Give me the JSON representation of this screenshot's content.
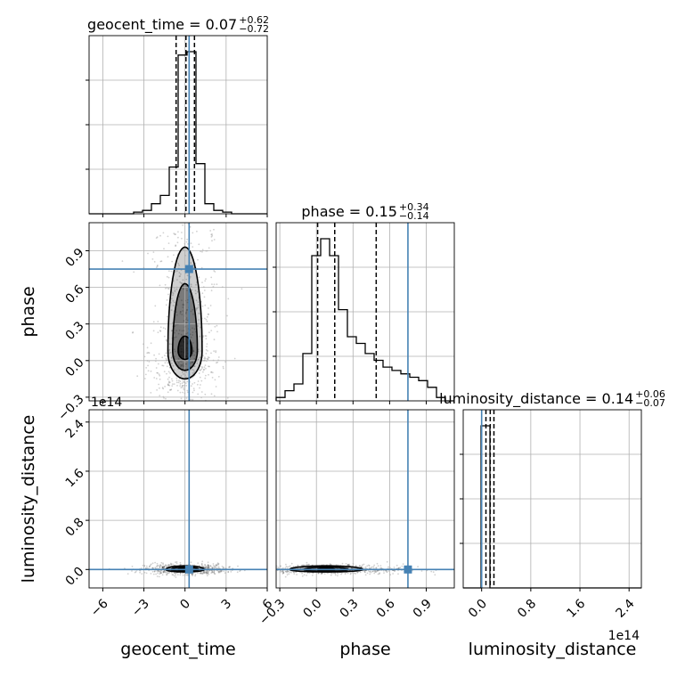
{
  "chart_data": {
    "type": "corner",
    "parameters": [
      "geocent_time",
      "phase",
      "luminosity_distance"
    ],
    "axis_labels": {
      "geocent_time": "geocent_time",
      "phase": "phase",
      "luminosity_distance": "luminosity_distance"
    },
    "offset_label": "1e14",
    "truth_color": "#4682b4",
    "truths": {
      "geocent_time": 0.3,
      "phase": 0.75,
      "luminosity_distance": 0.0
    },
    "titles": [
      {
        "param": "geocent_time",
        "name": "geocent_time",
        "median": "0.07",
        "plus": "+0.62",
        "minus": "−0.72"
      },
      {
        "param": "phase",
        "name": "phase",
        "median": "0.15",
        "plus": "+0.34",
        "minus": "−0.14"
      },
      {
        "param": "luminosity_distance",
        "name": "luminosity_distance",
        "median": "0.14",
        "plus": "+0.06",
        "minus": "−0.07"
      }
    ],
    "ranges": {
      "geocent_time": [
        -7.0,
        6.0
      ],
      "phase": [
        -0.33,
        1.13
      ],
      "luminosity_distance": [
        -0.3,
        2.6
      ]
    },
    "ticks": {
      "geocent_time": {
        "values": [
          -6,
          -3,
          0,
          3,
          6
        ],
        "labels": [
          "−6",
          "−3",
          "0",
          "3",
          "6"
        ]
      },
      "phase": {
        "values": [
          -0.3,
          0.0,
          0.3,
          0.6,
          0.9
        ],
        "labels": [
          "−0.3",
          "0.0",
          "0.3",
          "0.6",
          "0.9"
        ]
      },
      "luminosity_distance": {
        "values": [
          0.0,
          0.8,
          1.6,
          2.4
        ],
        "labels": [
          "0.0",
          "0.8",
          "1.6",
          "2.4"
        ]
      }
    },
    "quantile_lines": {
      "geocent_time": [
        -0.65,
        0.07,
        0.69
      ],
      "phase": [
        0.01,
        0.15,
        0.49
      ],
      "luminosity_distance": [
        0.07,
        0.14,
        0.2
      ]
    },
    "histograms": {
      "geocent_time": {
        "edges": [
          -7,
          -6.35,
          -5.7,
          -5.05,
          -4.4,
          -3.75,
          -3.1,
          -2.45,
          -1.8,
          -1.15,
          -0.5,
          0.15,
          0.8,
          1.45,
          2.1,
          2.75,
          3.4,
          4.05,
          4.7,
          5.35,
          6.0
        ],
        "counts": [
          0,
          0,
          0,
          0,
          0,
          1,
          2,
          6,
          11,
          28,
          95,
          97,
          30,
          6,
          2,
          1,
          0,
          0,
          0,
          0
        ]
      },
      "phase": {
        "edges": [
          -0.33,
          -0.257,
          -0.184,
          -0.111,
          -0.038,
          0.035,
          0.108,
          0.181,
          0.254,
          0.327,
          0.4,
          0.473,
          0.546,
          0.619,
          0.692,
          0.765,
          0.838,
          0.911,
          0.984,
          1.057,
          1.13
        ],
        "counts": [
          1,
          3,
          5,
          14,
          43,
          48,
          43,
          27,
          19,
          17,
          14,
          12,
          10,
          9,
          8,
          7,
          6,
          4,
          1,
          0
        ]
      },
      "luminosity_distance": {
        "edges": [
          -0.3,
          -0.155,
          -0.01,
          0.135,
          0.28,
          0.425,
          0.57,
          0.715,
          0.86,
          1.005,
          1.15,
          1.295,
          1.44,
          1.585,
          1.73,
          1.875,
          2.02,
          2.165,
          2.31,
          2.455,
          2.6
        ],
        "counts": [
          0,
          0,
          100,
          0,
          0,
          0,
          0,
          0,
          0,
          0,
          0,
          0,
          0,
          0,
          0,
          0,
          0,
          0,
          0,
          0
        ]
      }
    },
    "contours_2d": [
      {
        "x": "geocent_time",
        "y": "phase",
        "center": [
          0.0,
          0.08
        ],
        "levels": [
          {
            "sx": 0.5,
            "sy_up": 0.12,
            "sy_down": 0.07
          },
          {
            "sx": 0.9,
            "sy_up": 0.55,
            "sy_down": 0.16
          },
          {
            "sx": 1.25,
            "sy_up": 0.85,
            "sy_down": 0.23
          }
        ]
      },
      {
        "x": "geocent_time",
        "y": "luminosity_distance",
        "center": [
          0.0,
          0.0
        ],
        "levels": [
          {
            "sx": 0.5,
            "sy_up": 0.02,
            "sy_down": 0.02
          },
          {
            "sx": 1.0,
            "sy_up": 0.04,
            "sy_down": 0.03
          },
          {
            "sx": 1.4,
            "sy_up": 0.06,
            "sy_down": 0.04
          }
        ]
      },
      {
        "x": "phase",
        "y": "luminosity_distance",
        "center": [
          0.08,
          0.0
        ],
        "levels": [
          {
            "sx": 0.07,
            "sy_up": 0.02,
            "sy_down": 0.02
          },
          {
            "sx": 0.18,
            "sy_up": 0.04,
            "sy_down": 0.03
          },
          {
            "sx": 0.3,
            "sy_up": 0.06,
            "sy_down": 0.04
          }
        ]
      }
    ],
    "grid": true
  }
}
